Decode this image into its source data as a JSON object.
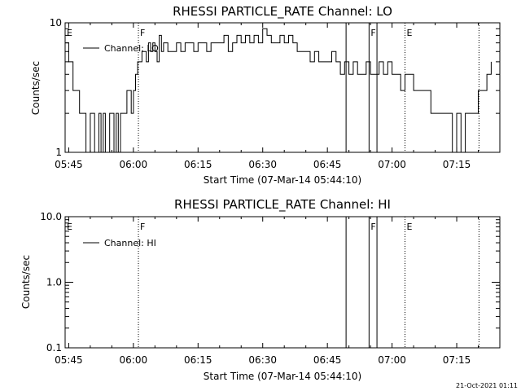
{
  "chart_data": [
    {
      "type": "line",
      "title": "RHESSI PARTICLE_RATE Channel: LO",
      "xlabel": "Start Time (07-Mar-14 05:44:10)",
      "ylabel": "Counts/sec",
      "yscale": "log",
      "ylim": [
        1,
        10
      ],
      "y_ticks": [
        "1",
        "10"
      ],
      "xlim": [
        "05:44:10",
        "07:25:00"
      ],
      "x_ticks": [
        "05:45",
        "06:00",
        "06:15",
        "06:30",
        "06:45",
        "07:00",
        "07:15"
      ],
      "grid": false,
      "legend_position": "top-left",
      "series": [
        {
          "name": "Channel: LO",
          "x": [
            "05:44:10",
            "05:45:00",
            "05:46:00",
            "05:46:30",
            "05:47:30",
            "05:48:00",
            "05:48:30",
            "05:49:00",
            "05:49:30",
            "05:50:00",
            "05:50:30",
            "05:51:00",
            "05:51:30",
            "05:52:00",
            "05:52:30",
            "05:53:00",
            "05:53:30",
            "05:54:00",
            "05:54:30",
            "05:55:00",
            "05:55:30",
            "05:56:00",
            "05:56:30",
            "05:57:00",
            "05:57:30",
            "05:58:00",
            "05:58:30",
            "05:59:00",
            "05:59:30",
            "06:00:00",
            "06:00:30",
            "06:01:00",
            "06:01:30",
            "06:02:00",
            "06:02:30",
            "06:03:00",
            "06:03:30",
            "06:04:00",
            "06:04:30",
            "06:05:00",
            "06:05:30",
            "06:06:00",
            "06:06:30",
            "06:07:00",
            "06:08:00",
            "06:09:00",
            "06:10:00",
            "06:11:00",
            "06:12:00",
            "06:13:00",
            "06:14:00",
            "06:15:00",
            "06:16:00",
            "06:17:00",
            "06:18:00",
            "06:19:00",
            "06:20:00",
            "06:21:00",
            "06:22:00",
            "06:23:00",
            "06:24:00",
            "06:25:00",
            "06:26:00",
            "06:27:00",
            "06:28:00",
            "06:29:00",
            "06:30:00",
            "06:31:00",
            "06:32:00",
            "06:33:00",
            "06:34:00",
            "06:35:00",
            "06:36:00",
            "06:37:00",
            "06:38:00",
            "06:39:00",
            "06:40:00",
            "06:41:00",
            "06:42:00",
            "06:43:00",
            "06:44:00",
            "06:45:00",
            "06:46:00",
            "06:47:00",
            "06:48:00",
            "06:49:00",
            "06:50:00",
            "06:51:00",
            "06:52:00",
            "06:53:00",
            "06:54:00",
            "06:55:00",
            "06:56:00",
            "06:57:00",
            "06:58:00",
            "06:59:00",
            "07:00:00",
            "07:01:00",
            "07:02:00",
            "07:03:00",
            "07:04:00",
            "07:05:00",
            "07:06:00",
            "07:07:00",
            "07:08:00",
            "07:09:00",
            "07:10:00",
            "07:11:00",
            "07:12:00",
            "07:13:00",
            "07:14:00",
            "07:15:00",
            "07:16:00",
            "07:17:00",
            "07:18:00",
            "07:19:00",
            "07:20:00",
            "07:21:00",
            "07:22:00",
            "07:23:00"
          ],
          "y": [
            7,
            5,
            3,
            3,
            2,
            2,
            2,
            1,
            1,
            2,
            2,
            1,
            1,
            2,
            1,
            2,
            1,
            1,
            2,
            2,
            1,
            2,
            1,
            2,
            2,
            2,
            3,
            3,
            2,
            3,
            4,
            5,
            5,
            6,
            6,
            5,
            7,
            6,
            7,
            6,
            5,
            8,
            6,
            7,
            6,
            6,
            7,
            6,
            7,
            7,
            6,
            7,
            7,
            6,
            7,
            7,
            7,
            8,
            6,
            7,
            8,
            7,
            8,
            7,
            8,
            7,
            9,
            8,
            7,
            7,
            8,
            7,
            8,
            7,
            6,
            6,
            6,
            5,
            6,
            5,
            5,
            5,
            6,
            5,
            4,
            5,
            4,
            5,
            4,
            4,
            5,
            4,
            4,
            5,
            4,
            5,
            4,
            4,
            3,
            4,
            4,
            3,
            3,
            3,
            3,
            2,
            2,
            2,
            2,
            2,
            1,
            2,
            1,
            2,
            2,
            2,
            3,
            3,
            4,
            5
          ]
        }
      ],
      "annotations": [
        {
          "label": "E",
          "x": "05:44:10",
          "style": "solid"
        },
        {
          "label": "F",
          "x": "06:01:10",
          "style": "dotted"
        },
        {
          "label": "F",
          "x": "06:54:40",
          "style": "solid"
        },
        {
          "label": "E",
          "x": "07:03:00",
          "style": "dotted"
        }
      ],
      "extra_lines": [
        {
          "x": "06:49:20",
          "style": "solid"
        },
        {
          "x": "06:56:30",
          "style": "solid"
        },
        {
          "x": "07:20:10",
          "style": "dotted"
        }
      ]
    },
    {
      "type": "line",
      "title": "RHESSI PARTICLE_RATE Channel: HI",
      "xlabel": "Start Time (07-Mar-14 05:44:10)",
      "ylabel": "Counts/sec",
      "yscale": "log",
      "ylim": [
        0.1,
        10
      ],
      "y_ticks": [
        "0.1",
        "1.0",
        "10.0"
      ],
      "xlim": [
        "05:44:10",
        "07:25:00"
      ],
      "x_ticks": [
        "05:45",
        "06:00",
        "06:15",
        "06:30",
        "06:45",
        "07:00",
        "07:15"
      ],
      "grid": false,
      "legend_position": "top-left",
      "series": [
        {
          "name": "Channel: HI",
          "x": [],
          "y": []
        }
      ],
      "annotations": [
        {
          "label": "E",
          "x": "05:44:10",
          "style": "solid"
        },
        {
          "label": "F",
          "x": "06:01:10",
          "style": "dotted"
        },
        {
          "label": "F",
          "x": "06:54:40",
          "style": "solid"
        },
        {
          "label": "E",
          "x": "07:03:00",
          "style": "dotted"
        }
      ],
      "extra_lines": [
        {
          "x": "06:49:20",
          "style": "solid"
        },
        {
          "x": "06:56:30",
          "style": "solid"
        },
        {
          "x": "07:20:10",
          "style": "dotted"
        }
      ]
    }
  ],
  "footer": {
    "timestamp": "21-Oct-2021 01:11"
  }
}
